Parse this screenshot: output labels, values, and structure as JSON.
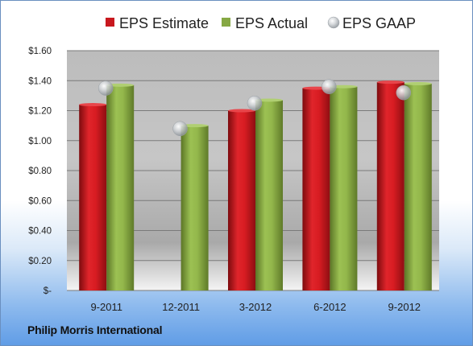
{
  "chart_data": {
    "type": "bar",
    "categories": [
      "9-2011",
      "12-2011",
      "3-2012",
      "6-2012",
      "9-2012"
    ],
    "series": [
      {
        "name": "EPS Estimate",
        "type": "bar",
        "color": "#c8181e",
        "values": [
          1.24,
          null,
          1.2,
          1.35,
          1.39
        ]
      },
      {
        "name": "EPS Actual",
        "type": "bar",
        "color": "#86a844",
        "values": [
          1.37,
          1.1,
          1.27,
          1.36,
          1.38
        ]
      },
      {
        "name": "EPS GAAP",
        "type": "scatter",
        "color": "#c4c8cc",
        "values": [
          1.35,
          1.08,
          1.25,
          1.36,
          1.32
        ]
      }
    ],
    "y_ticks": [
      {
        "value": 0,
        "label": "$-"
      },
      {
        "value": 0.2,
        "label": "$0.20"
      },
      {
        "value": 0.4,
        "label": "$0.40"
      },
      {
        "value": 0.6,
        "label": "$0.60"
      },
      {
        "value": 0.8,
        "label": "$0.80"
      },
      {
        "value": 1.0,
        "label": "$1.00"
      },
      {
        "value": 1.2,
        "label": "$1.20"
      },
      {
        "value": 1.4,
        "label": "$1.40"
      },
      {
        "value": 1.6,
        "label": "$1.60"
      }
    ],
    "ylim": [
      0,
      1.6
    ],
    "grid": true,
    "legend_position": "top",
    "title": "",
    "xlabel": "",
    "ylabel": ""
  },
  "company": "Philip Morris International",
  "colors": {
    "plot_background_top": "#b9b9b9",
    "plot_background_bottom": "#ffffff",
    "gridline": "#7a7a7a"
  }
}
